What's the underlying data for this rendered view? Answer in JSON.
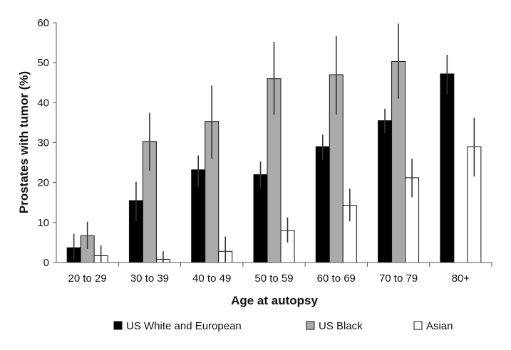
{
  "chart_data": {
    "type": "bar",
    "title": "",
    "xlabel": "Age at autopsy",
    "ylabel": "Prostates with tumor (%)",
    "ylim": [
      0,
      60
    ],
    "yticks": [
      "0",
      "10",
      "20",
      "30",
      "40",
      "50",
      "60"
    ],
    "categories": [
      "20 to 29",
      "30 to 39",
      "40 to 49",
      "50 to 59",
      "60 to 69",
      "70 to 79",
      "80+"
    ],
    "series": [
      {
        "name": "US White and European",
        "color": "#000000",
        "values": [
          3.7,
          15.5,
          23.2,
          22.0,
          29.0,
          35.5,
          47.2
        ],
        "err_low": [
          0.5,
          10.3,
          19.0,
          18.5,
          25.7,
          32.3,
          42.0
        ],
        "err_high": [
          7.2,
          20.2,
          26.8,
          25.3,
          32.0,
          38.5,
          52.0
        ]
      },
      {
        "name": "US Black",
        "color": "#aaaaaa",
        "values": [
          6.7,
          30.3,
          35.3,
          46.0,
          47.0,
          50.3,
          null
        ],
        "err_low": [
          3.4,
          23.0,
          26.0,
          37.0,
          37.0,
          41.0,
          null
        ],
        "err_high": [
          10.2,
          37.5,
          44.3,
          55.2,
          56.7,
          59.8,
          null
        ]
      },
      {
        "name": "Asian",
        "color": "#ffffff",
        "values": [
          1.7,
          0.8,
          2.8,
          8.0,
          14.3,
          21.2,
          29.0
        ],
        "err_low": [
          0.0,
          0.0,
          0.0,
          5.0,
          10.3,
          16.3,
          21.5
        ],
        "err_high": [
          4.3,
          2.8,
          6.5,
          11.3,
          18.5,
          26.0,
          36.2
        ]
      }
    ],
    "grid": false,
    "legend_position": "bottom"
  }
}
